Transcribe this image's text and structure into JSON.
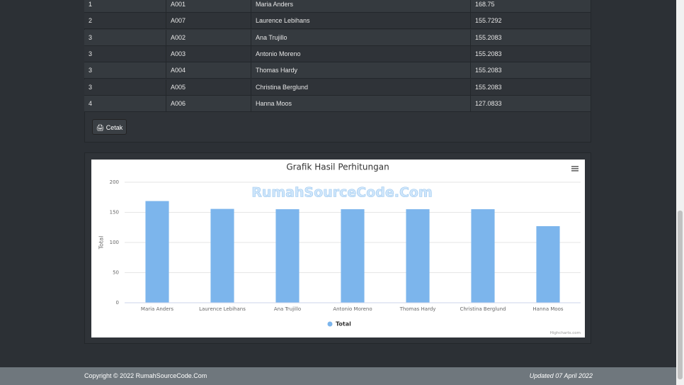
{
  "table": {
    "rows": [
      [
        "1",
        "A001",
        "Maria Anders",
        "168.75"
      ],
      [
        "2",
        "A007",
        "Laurence Lebihans",
        "155.7292"
      ],
      [
        "3",
        "A002",
        "Ana Trujillo",
        "155.2083"
      ],
      [
        "3",
        "A003",
        "Antonio Moreno",
        "155.2083"
      ],
      [
        "3",
        "A004",
        "Thomas Hardy",
        "155.2083"
      ],
      [
        "3",
        "A005",
        "Christina Berglund",
        "155.2083"
      ],
      [
        "4",
        "A006",
        "Hanna Moos",
        "127.0833"
      ]
    ]
  },
  "button": "Cetak",
  "watermark": "RumahSourceCode.Com",
  "credits": "Highcharts.com",
  "footer": {
    "copyright": "Copyright © 2022 RumahSourceCode.Com",
    "updated": "Updated 07 April 2022"
  },
  "chart_data": {
    "type": "bar",
    "title": "Grafik Hasil Perhitungan",
    "y_label": "Total",
    "categories": [
      "Maria Anders",
      "Laurence Lebihans",
      "Ana Trujillo",
      "Antonio Moreno",
      "Thomas Hardy",
      "Christina Berglund",
      "Hanna Moos"
    ],
    "series": [
      {
        "name": "Total",
        "color": "#7cb5ec",
        "values": [
          168.75,
          155.7292,
          155.2083,
          155.2083,
          155.2083,
          155.2083,
          127.0833
        ]
      }
    ],
    "ylim": [
      0,
      200
    ],
    "yticks": [
      0,
      50,
      100,
      150,
      200
    ],
    "grid": true
  }
}
